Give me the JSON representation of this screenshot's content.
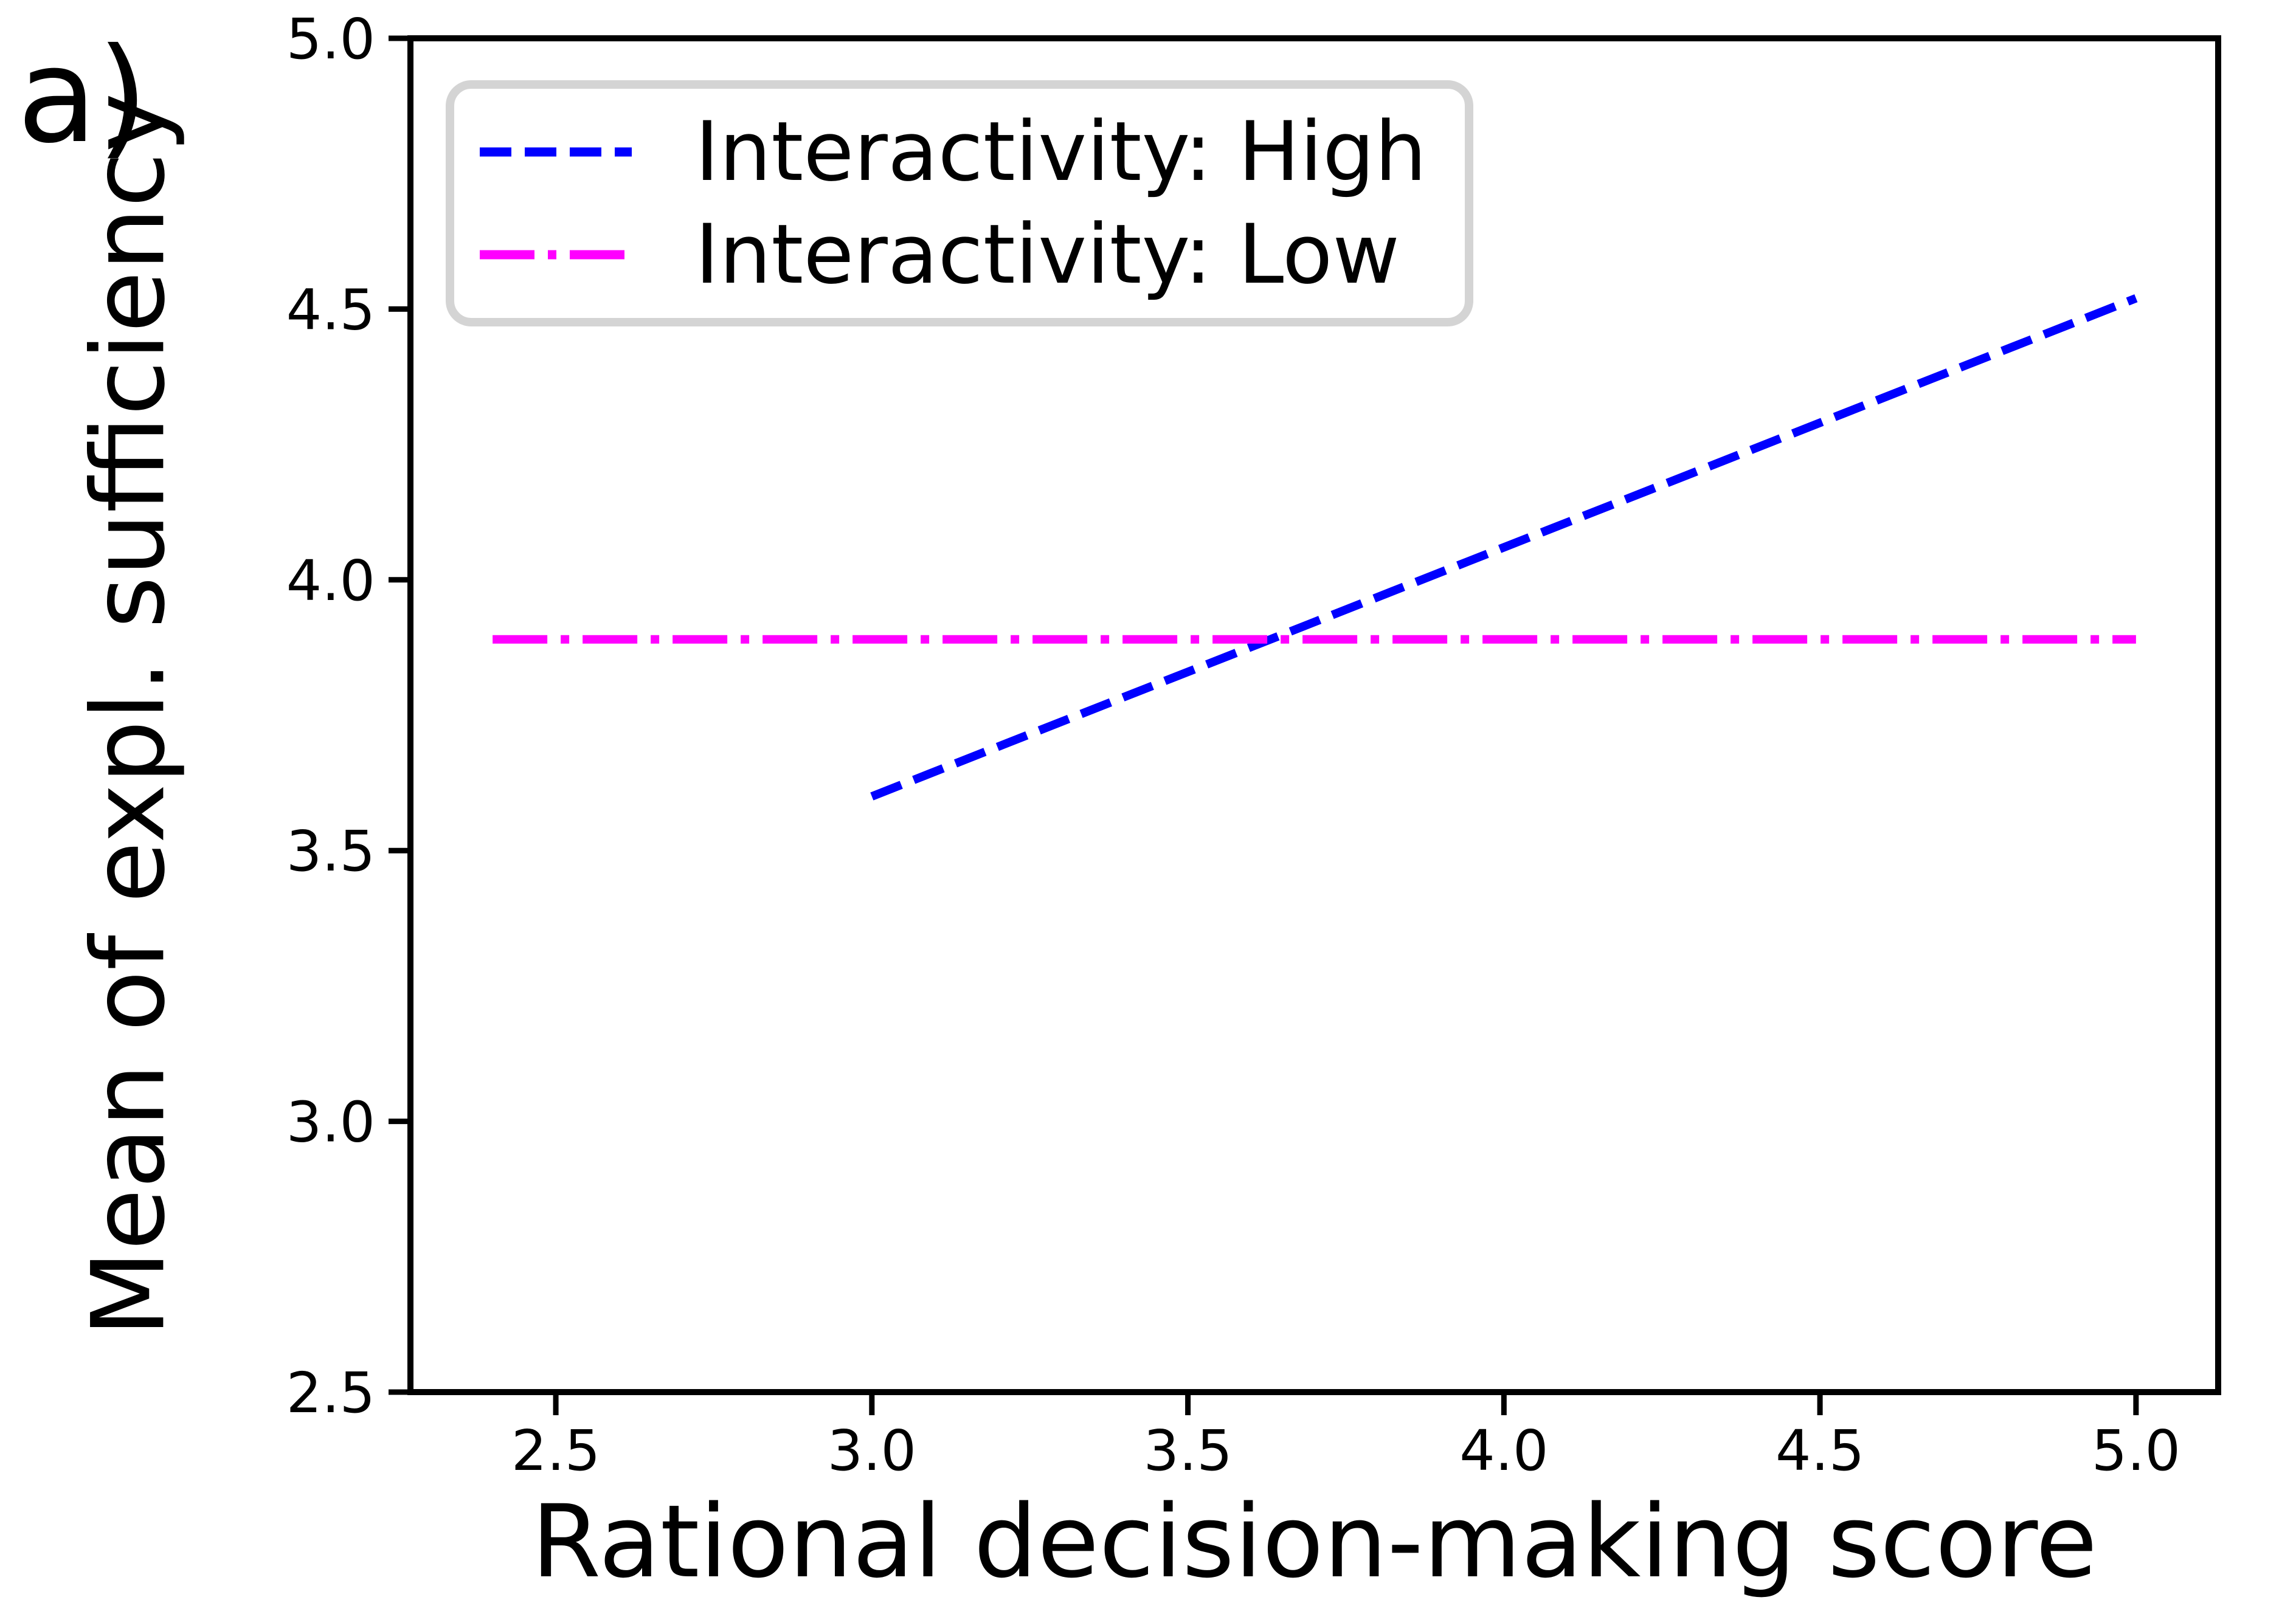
{
  "panel_label": "a)",
  "chart_data": {
    "type": "line",
    "title": "",
    "xlabel": "Rational decision-making score",
    "ylabel": "Mean of expl. sufficiency",
    "xlim": [
      2.27,
      5.13
    ],
    "ylim": [
      2.5,
      5.0
    ],
    "xticks": [
      "2.5",
      "3.0",
      "3.5",
      "4.0",
      "4.5",
      "5.0"
    ],
    "yticks": [
      "2.5",
      "3.0",
      "3.5",
      "4.0",
      "4.5",
      "5.0"
    ],
    "grid": false,
    "legend_position": "upper left",
    "series": [
      {
        "name": "Interactivity: High",
        "color": "#0000ff",
        "style": "dashed",
        "x": [
          3.0,
          5.0
        ],
        "y": [
          3.6,
          4.52
        ]
      },
      {
        "name": "Interactivity: Low",
        "color": "#ff00ff",
        "style": "dashdot",
        "x": [
          2.4,
          5.0
        ],
        "y": [
          3.89,
          3.89
        ]
      }
    ],
    "colors": {
      "axis": "#000000",
      "tick_label": "#000000",
      "legend_border": "#d4d4d4",
      "background": "#ffffff"
    }
  }
}
